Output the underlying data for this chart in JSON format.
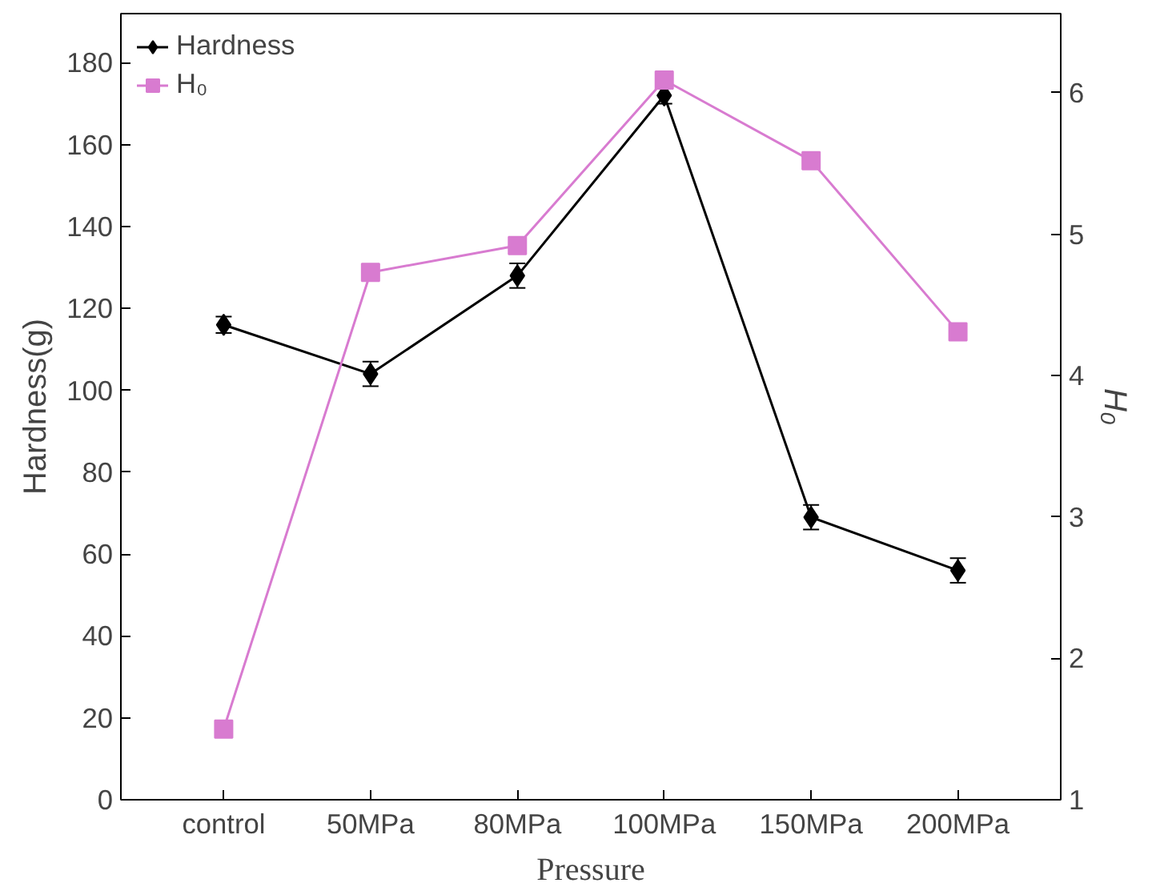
{
  "chart_data": {
    "type": "line",
    "xlabel": "Pressure",
    "ylabel": "Hardness(g)",
    "y2label": "H₀",
    "categories": [
      "control",
      "50MPa",
      "80MPa",
      "100MPa",
      "150MPa",
      "200MPa"
    ],
    "series": [
      {
        "name": "Hardness",
        "color": "#000000",
        "marker": "diamond",
        "values": [
          116,
          104,
          128,
          172,
          69,
          56
        ],
        "errors": [
          2,
          3,
          3,
          2,
          3,
          3
        ]
      },
      {
        "name": "H₀",
        "color": "#d87bd0",
        "marker": "square",
        "axis": "y2",
        "values": [
          1.5,
          4.73,
          4.92,
          6.09,
          5.52,
          4.31
        ]
      }
    ],
    "ylim": [
      0,
      192
    ],
    "yticks": [
      0,
      20,
      40,
      60,
      80,
      100,
      120,
      140,
      160,
      180
    ],
    "y2lim": [
      1,
      6.56
    ],
    "y2ticks": [
      1,
      2,
      3,
      4,
      5,
      6
    ],
    "legend": "top left",
    "grid": false,
    "line_style": "solid"
  }
}
